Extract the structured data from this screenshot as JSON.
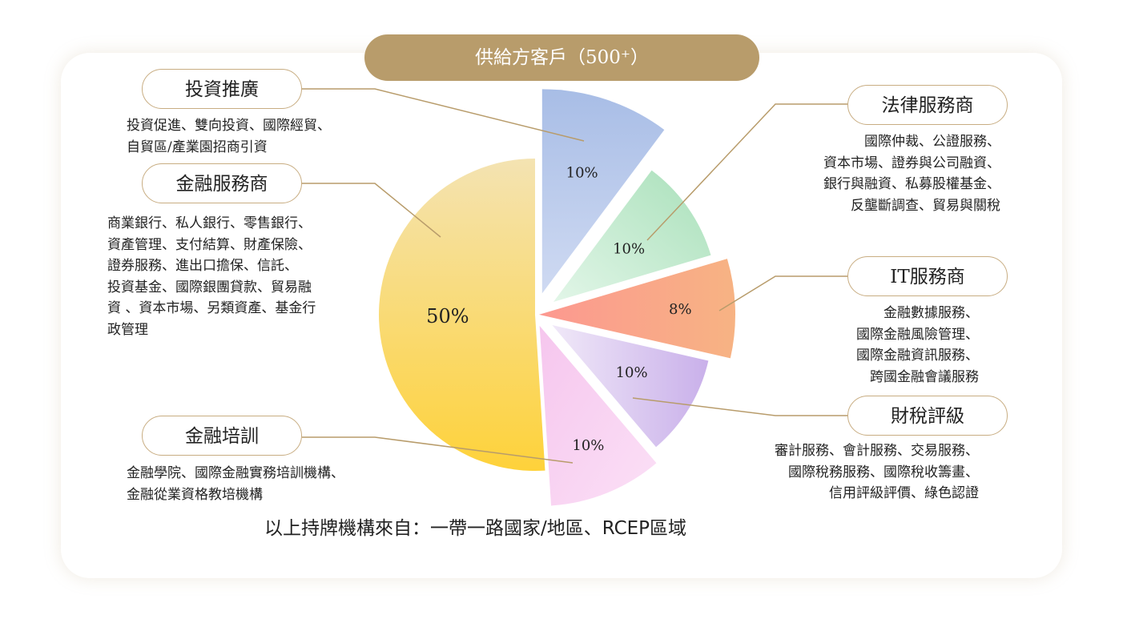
{
  "banner": "供給方客戶（500⁺）",
  "footer": "以上持牌機構來自：一帶一路國家/地區、RCEP區域",
  "chart_data": {
    "type": "pie",
    "unit": "%",
    "slices": [
      {
        "label": "投資推廣",
        "value": 10,
        "value_label": "10%",
        "color": [
          "#cfdaf2",
          "#a8bde6"
        ],
        "description": "投資促進、雙向投資、國際經貿、\n自貿區/產業園招商引資"
      },
      {
        "label": "法律服務商",
        "value": 10,
        "value_label": "10%",
        "color": [
          "#e2f6e8",
          "#a9e0ba"
        ],
        "description": "國際仲裁、公證服務、\n資本市場、證券與公司融資、\n銀行與融資、私募股權基金、\n反壟斷調查、貿易與關稅"
      },
      {
        "label": "IT服務商",
        "value": 8,
        "value_label": "8%",
        "color": [
          "#fc9890",
          "#f7b383"
        ],
        "description": "金融數據服務、\n國際金融風險管理、\n國際金融資訊服務、\n跨國金融會議服務"
      },
      {
        "label": "財稅評級",
        "value": 10,
        "value_label": "10%",
        "color": [
          "#f0e8f8",
          "#c9b0ea"
        ],
        "description": "審計服務、會計服務、交易服務、\n國際稅務服務、國際稅收籌畫、\n信用評級評價、綠色認證"
      },
      {
        "label": "金融培訓",
        "value": 10,
        "value_label": "10%",
        "color": [
          "#f6c6ee",
          "#fbe0f6"
        ],
        "description": "金融學院、國際金融實務培訓機構、\n金融從業資格教培機構"
      },
      {
        "label": "金融服務商",
        "value": 50,
        "value_label": "50%",
        "color": [
          "#fed23a",
          "#f4e3b2"
        ],
        "description": "商業銀行、私人銀行、零售銀行、\n資產管理、支付結算、財產保險、\n證券服務、進出口擔保、信託、\n投資基金、國際銀團貸款、貿易融\n資 、資本市場、另類資產、基金行\n政管理"
      }
    ]
  }
}
